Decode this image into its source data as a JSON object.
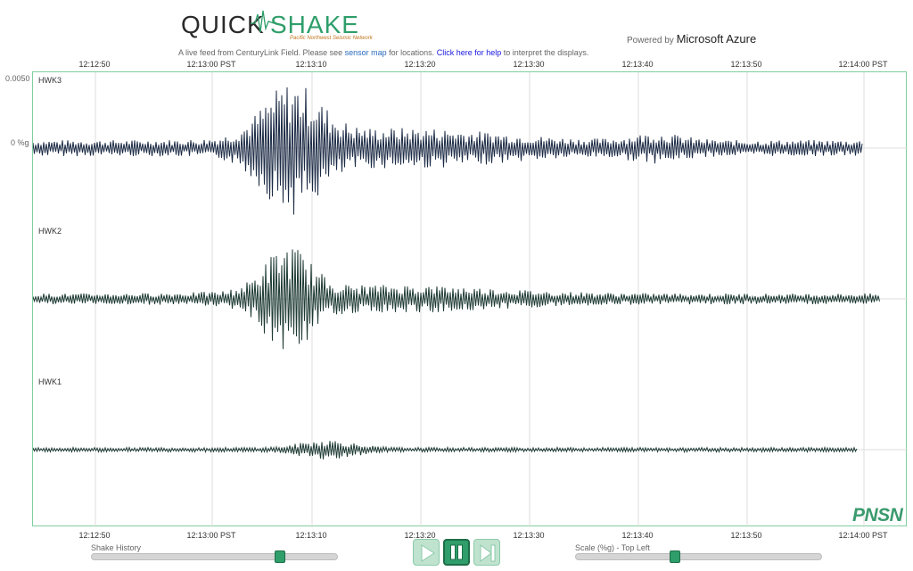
{
  "header": {
    "logo_quick": "QUICK",
    "logo_shake": "SHAKE",
    "logo_subtitle": "Pacific Northwest Seismic Network",
    "powered_prefix": "Powered by",
    "powered_brand": "Microsoft Azure"
  },
  "feed": {
    "text_1": "A live feed from CenturyLink Field. Please see",
    "sensor_map_link": "sensor map",
    "text_2": "for locations.",
    "help_link": "Click here for help",
    "text_3": "to interpret the displays."
  },
  "time_ticks": [
    "12:12:50",
    "12:13:00 PST",
    "12:13:10",
    "12:13:20",
    "12:13:30",
    "12:13:40",
    "12:13:50",
    "12:14:00 PST"
  ],
  "y_labels": {
    "top": "0.0050",
    "zero": "0 %g"
  },
  "stations": [
    "HWK3",
    "HWK2",
    "HWK1"
  ],
  "brand_corner": "PNSN",
  "controls": {
    "shake_history_label": "Shake History",
    "shake_history_value": 0.78,
    "scale_label": "Scale (%g) - Top Left",
    "scale_value": 0.4,
    "play_icon": "play-icon",
    "pause_icon": "pause-icon",
    "skip_icon": "skip-forward-icon"
  },
  "colors": {
    "trace": "#1c2b45",
    "trace_green": "#1e3a34",
    "accent": "#2f9e6a",
    "plot_border": "#7fcf9f",
    "grid": "#dcdcdc"
  }
}
